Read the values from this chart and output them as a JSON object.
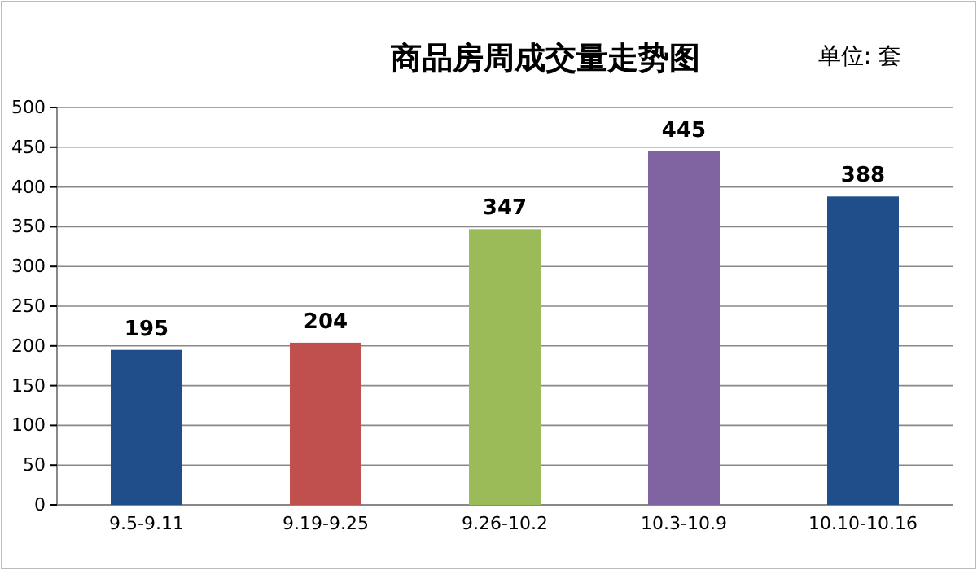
{
  "chart_data": {
    "type": "bar",
    "title": "商品房周成交量走势图",
    "annotations": [
      "单位: 套"
    ],
    "categories": [
      "9.5-9.11",
      "9.19-9.25",
      "9.26-10.2",
      "10.3-10.9",
      "10.10-10.16"
    ],
    "values": [
      195,
      204,
      347,
      445,
      388
    ],
    "colors": [
      "#1f4e8a",
      "#c0504d",
      "#9bbb59",
      "#8064a2",
      "#1f4e8a"
    ],
    "ylim": [
      0,
      500
    ],
    "yticks": [
      0,
      50,
      100,
      150,
      200,
      250,
      300,
      350,
      400,
      450,
      500
    ],
    "grid": "y",
    "data_labels": true
  }
}
